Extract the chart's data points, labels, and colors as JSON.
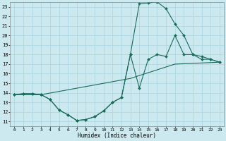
{
  "background_color": "#cce9f0",
  "grid_color": "#b0d8e3",
  "line_color": "#1a6b5a",
  "xlabel": "Humidex (Indice chaleur)",
  "xlim": [
    -0.5,
    23.5
  ],
  "ylim": [
    10.5,
    23.5
  ],
  "xticks": [
    0,
    1,
    2,
    3,
    4,
    5,
    6,
    7,
    8,
    9,
    10,
    11,
    12,
    13,
    14,
    15,
    16,
    17,
    18,
    19,
    20,
    21,
    22,
    23
  ],
  "yticks": [
    11,
    12,
    13,
    14,
    15,
    16,
    17,
    18,
    19,
    20,
    21,
    22,
    23
  ],
  "series1_x": [
    0,
    1,
    2,
    3,
    4,
    5,
    6,
    7,
    8,
    9,
    10,
    11,
    12,
    13,
    14,
    15,
    16,
    17,
    18,
    19,
    20,
    21,
    22,
    23
  ],
  "series1_y": [
    13.8,
    13.9,
    13.9,
    13.8,
    13.3,
    12.2,
    11.7,
    11.1,
    11.2,
    11.5,
    12.1,
    13.0,
    13.5,
    18.0,
    23.3,
    23.4,
    23.5,
    22.8,
    21.2,
    20.0,
    18.0,
    17.8,
    17.5,
    17.2
  ],
  "series2_x": [
    0,
    1,
    2,
    3,
    4,
    5,
    6,
    7,
    8,
    9,
    10,
    11,
    12,
    13,
    14,
    15,
    16,
    17,
    18,
    19,
    20,
    21,
    22,
    23
  ],
  "series2_y": [
    13.8,
    13.9,
    13.9,
    13.8,
    13.3,
    12.2,
    11.7,
    11.1,
    11.2,
    11.5,
    12.1,
    13.0,
    13.5,
    18.0,
    14.5,
    17.5,
    18.0,
    17.8,
    20.0,
    18.0,
    18.0,
    17.5,
    17.5,
    17.2
  ],
  "series3_x": [
    0,
    3,
    13,
    18,
    23
  ],
  "series3_y": [
    13.8,
    13.8,
    15.5,
    17.0,
    17.2
  ]
}
